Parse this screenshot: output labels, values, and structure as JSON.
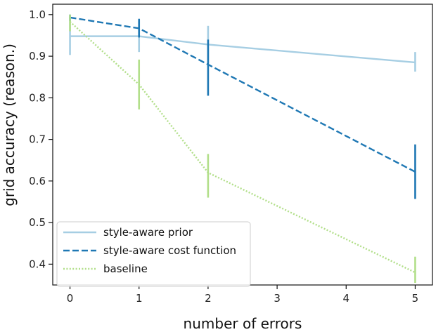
{
  "chart_data": {
    "type": "line",
    "title": "",
    "xlabel": "number of errors",
    "ylabel": "grid accuracy (reason.)",
    "xlim": [
      -0.25,
      5.25
    ],
    "ylim": [
      0.35,
      1.025
    ],
    "xticks": [
      0,
      1,
      2,
      3,
      4,
      5
    ],
    "xtick_labels": [
      "0",
      "1",
      "2",
      "3",
      "4",
      "5"
    ],
    "yticks": [
      0.4,
      0.5,
      0.6,
      0.7,
      0.8,
      0.9,
      1.0
    ],
    "ytick_labels": [
      "0.4",
      "0.5",
      "0.6",
      "0.7",
      "0.8",
      "0.9",
      "1.0"
    ],
    "grid": false,
    "legend_position": "lower-left",
    "series": [
      {
        "name": "style-aware prior",
        "color": "#a6cee3",
        "linestyle": "solid",
        "x": [
          0,
          1,
          2,
          5
        ],
        "values": [
          0.948,
          0.948,
          0.928,
          0.885
        ],
        "err_low": [
          0.903,
          0.91,
          0.883,
          0.863
        ],
        "err_high": [
          0.995,
          0.985,
          0.973,
          0.91
        ]
      },
      {
        "name": "style-aware cost function",
        "color": "#1f78b4",
        "linestyle": "dashed",
        "x": [
          0,
          1,
          2,
          5
        ],
        "values": [
          0.993,
          0.967,
          0.88,
          0.622
        ],
        "err_low": [
          0.985,
          0.945,
          0.805,
          0.557
        ],
        "err_high": [
          1.0,
          0.99,
          0.94,
          0.688
        ]
      },
      {
        "name": "baseline",
        "color": "#b2df8a",
        "linestyle": "dotted",
        "x": [
          0,
          1,
          2,
          5
        ],
        "values": [
          0.983,
          0.832,
          0.62,
          0.38
        ],
        "err_low": [
          0.96,
          0.772,
          0.56,
          0.355
        ],
        "err_high": [
          1.0,
          0.892,
          0.665,
          0.418
        ]
      }
    ]
  }
}
